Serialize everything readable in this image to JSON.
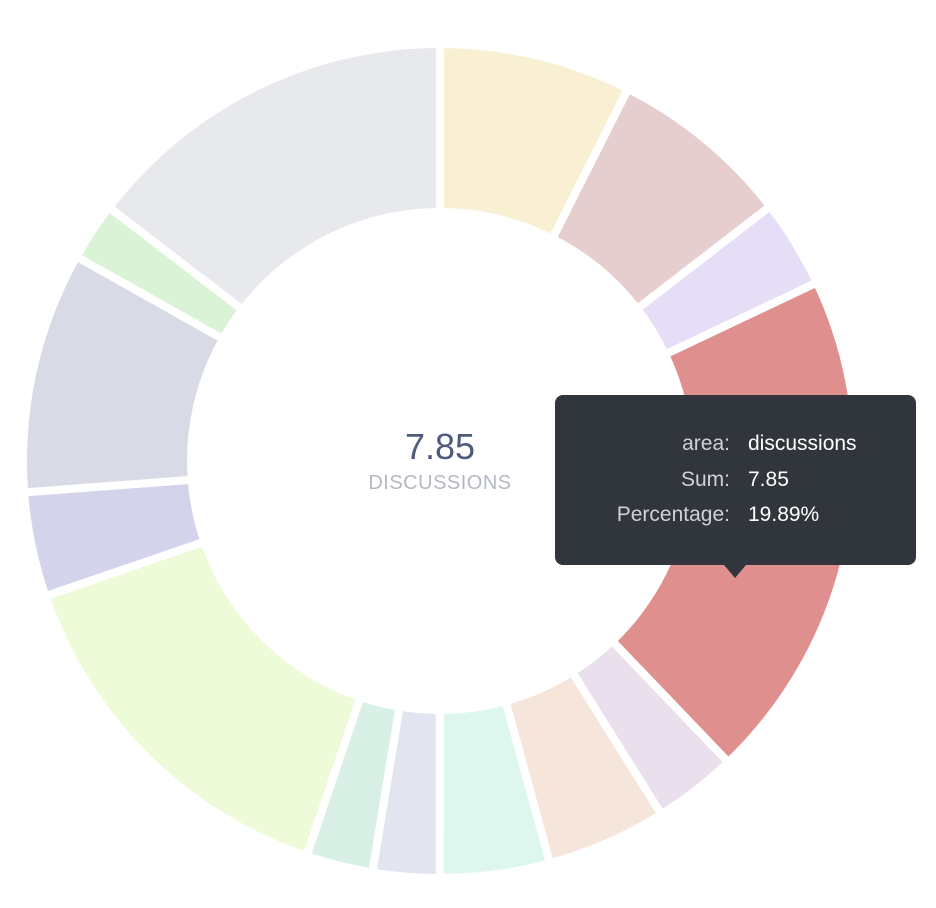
{
  "chart_data": {
    "type": "pie",
    "subtype": "donut",
    "unit": "",
    "center": {
      "value": "7.85",
      "label": "DISCUSSIONS"
    },
    "slices": [
      {
        "value": 2.94,
        "color": "#f9efd3"
      },
      {
        "value": 2.8,
        "color": "#e6cece"
      },
      {
        "value": 1.35,
        "color": "#e6ddf7"
      },
      {
        "value": 7.85,
        "color": "#e08f8f",
        "highlighted": true
      },
      {
        "value": 1.28,
        "color": "#eadfec"
      },
      {
        "value": 1.84,
        "color": "#f6e5da"
      },
      {
        "value": 1.68,
        "color": "#ddf6ee"
      },
      {
        "value": 1.02,
        "color": "#e2e4ef"
      },
      {
        "value": 1.02,
        "color": "#d8f0e6"
      },
      {
        "value": 5.75,
        "color": "#eefbd9"
      },
      {
        "value": 1.6,
        "color": "#d4d3ec"
      },
      {
        "value": 3.69,
        "color": "#d8dbe6"
      },
      {
        "value": 0.89,
        "color": "#daf3d6"
      },
      {
        "value": 5.76,
        "color": "#e8e9ec"
      }
    ],
    "tooltip": {
      "rows": [
        {
          "key": "area:",
          "value": "discussions"
        },
        {
          "key": "Sum:",
          "value": "7.85"
        },
        {
          "key": "Percentage:",
          "value": "19.89%"
        }
      ]
    }
  }
}
